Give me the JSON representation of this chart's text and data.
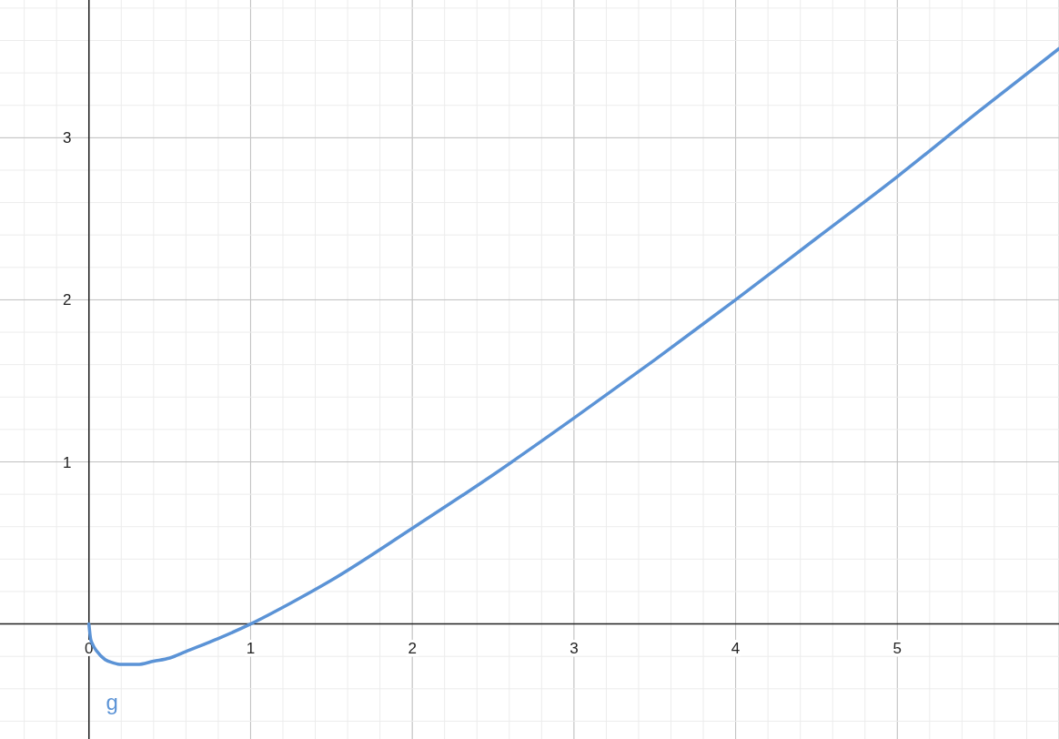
{
  "chart_data": {
    "type": "line",
    "xlim": [
      -0.55,
      6
    ],
    "ylim": [
      -0.71,
      3.85
    ],
    "xticks": [
      0,
      1,
      2,
      3,
      4,
      5
    ],
    "yticks": [
      {
        "value": 0,
        "label": null
      },
      1,
      2,
      3
    ],
    "grid": true,
    "marker": "none",
    "line_style": "solid",
    "annotations": [
      "g"
    ],
    "series": [
      {
        "color": "#5b93d6",
        "x": [
          0,
          0.01,
          0.02,
          0.05,
          0.1,
          0.15,
          0.2,
          0.25,
          0.3,
          0.4,
          0.5,
          0.6,
          0.8,
          1,
          1.25,
          1.5,
          2,
          2.5,
          3,
          3.5,
          4,
          4.5,
          5,
          5.5,
          6
        ],
        "values": [
          0,
          -0.09,
          -0.12,
          -0.17,
          -0.22,
          -0.24,
          -0.25,
          -0.25,
          -0.25,
          -0.23,
          -0.21,
          -0.17,
          -0.09,
          0,
          0.13,
          0.27,
          0.59,
          0.92,
          1.27,
          1.63,
          2,
          2.38,
          2.76,
          3.16,
          3.55
        ]
      }
    ]
  }
}
